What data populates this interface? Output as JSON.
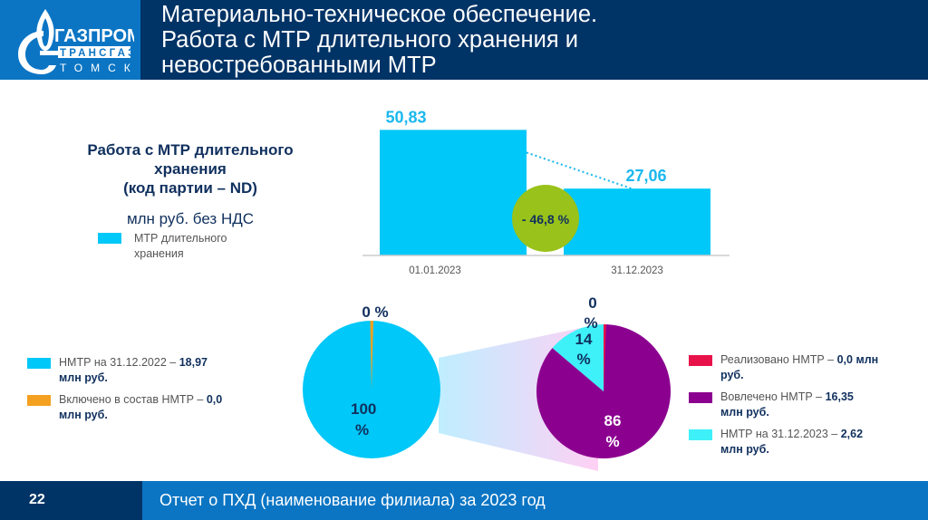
{
  "header": {
    "logo": {
      "line1": "ГАЗПРОМ",
      "line2": "ТРАНСГАЗ",
      "line3": "ТОМСК",
      "icon": "gazprom-flame-icon"
    },
    "title_lines": [
      "Материально-техническое обеспечение.",
      "Работа с МТР длительного хранения и",
      "невостребованными МТР"
    ]
  },
  "bar_section": {
    "title_lines": [
      "Работа с МТР длительного",
      "хранения",
      "(код партии – ND)"
    ],
    "subtitle": "млн руб. без НДС",
    "legend_label_lines": [
      "МТР длительного",
      "хранения"
    ],
    "change_badge": "- 46,8 %"
  },
  "left_legend": [
    {
      "text": "НМТР на 31.12.2022 – ",
      "value": "18,97",
      "unit": "млн руб."
    },
    {
      "text": "Включено в состав НМТР – ",
      "value": "0,0",
      "unit": "млн руб."
    }
  ],
  "right_legend": [
    {
      "text": "Реализовано НМТР – ",
      "value": "0,0 млн",
      "unit": "руб."
    },
    {
      "text": "Вовлечено НМТР – ",
      "value": "16,35",
      "unit": "млн руб."
    },
    {
      "text": "НМТР на 31.12.2023 – ",
      "value": "2,62",
      "unit": "млн руб."
    }
  ],
  "colors": {
    "header_bg": "#003366",
    "brand_blue": "#0b75c4",
    "bar": "#00c8f8",
    "bar_label": "#1ab8ee",
    "badge": "#99c21a",
    "orange": "#f4a020",
    "red": "#e8124a",
    "purple": "#8c0090",
    "cyan": "#3ef0f8",
    "dark_text": "#10305e"
  },
  "chart_data": [
    {
      "type": "bar",
      "title": "Работа с МТР длительного хранения (код партии – ND)",
      "ylabel": "млн руб. без НДС",
      "categories": [
        "01.01.2023",
        "31.12.2023"
      ],
      "series": [
        {
          "name": "МТР длительного хранения",
          "values": [
            50.83,
            27.06
          ]
        }
      ],
      "data_labels": [
        "50,83",
        "27,06"
      ],
      "change_label": "- 46,8 %",
      "ylim": [
        0,
        55
      ],
      "grid": false,
      "legend": "left"
    },
    {
      "type": "pie",
      "title": "",
      "slices": [
        {
          "name": "НМТР на 31.12.2022",
          "value": 18.97,
          "percent_label": "100 %",
          "color": "#00c8f8"
        },
        {
          "name": "Включено в состав НМТР",
          "value": 0.0,
          "percent_label": "0 %",
          "color": "#f4a020"
        }
      ],
      "legend": "left"
    },
    {
      "type": "pie",
      "title": "",
      "slices": [
        {
          "name": "Реализовано НМТР",
          "value": 0.0,
          "percent_label": "0 %",
          "color": "#e8124a"
        },
        {
          "name": "Вовлечено НМТР",
          "value": 16.35,
          "percent_label": "86 %",
          "color": "#8c0090"
        },
        {
          "name": "НМТР на 31.12.2023",
          "value": 2.62,
          "percent_label": "14 %",
          "color": "#3ef0f8"
        }
      ],
      "legend": "right"
    }
  ],
  "footer": {
    "page_number": "22",
    "text": "Отчет о ПХД (наименование филиала) за 2023 год"
  }
}
